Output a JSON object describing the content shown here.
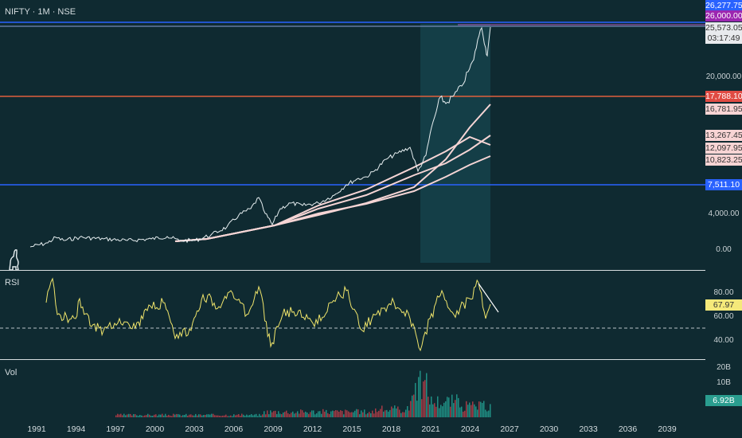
{
  "symbol": {
    "title": "NIFTY · 1M · NSE"
  },
  "panes": {
    "rsi_label": "RSI",
    "vol_label": "Vol"
  },
  "price_axis": {
    "ticks": [
      "20,000.00",
      "4,000.00",
      "0.00"
    ],
    "labels": {
      "top": "26,277.75",
      "alert": "26,000.00",
      "last": "25,573.05",
      "countdown": "03:17:49",
      "h_red": "17,788.10",
      "ma1": "16,781.95",
      "ma2": "13,267.45",
      "ma3": "12,097.95",
      "ma4": "10,823.25",
      "h_blue": "7,511.10"
    }
  },
  "rsi_axis": {
    "ticks": [
      "80.00",
      "60.00",
      "40.00"
    ],
    "value": "67.97"
  },
  "vol_axis": {
    "ticks": [
      "20B",
      "10B"
    ],
    "value": "6.92B"
  },
  "time_axis": {
    "years": [
      "1991",
      "1994",
      "1997",
      "2000",
      "2003",
      "2006",
      "2009",
      "2012",
      "2015",
      "2018",
      "2021",
      "2024",
      "2027",
      "2030",
      "2033",
      "2036",
      "2039"
    ]
  },
  "colors": {
    "background": "#0f2a31",
    "price_line": "#e6eef0",
    "ma_line": "#f6d5d5",
    "h_line_blue": "#2962ff",
    "h_line_red": "#e0603d",
    "rsi_line": "#f0e56b",
    "vol_up": "#1f8f84",
    "vol_down": "#a53a45"
  },
  "icons": {
    "logo": "dinosaur-logo-icon"
  }
}
